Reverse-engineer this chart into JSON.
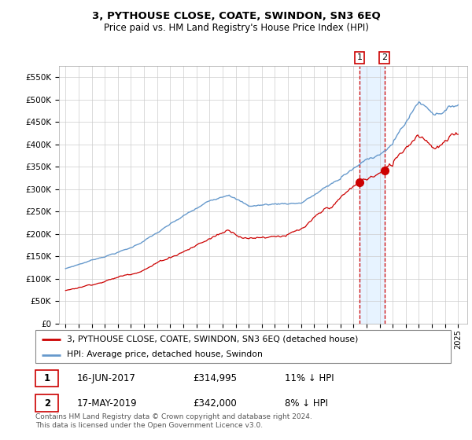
{
  "title": "3, PYTHOUSE CLOSE, COATE, SWINDON, SN3 6EQ",
  "subtitle": "Price paid vs. HM Land Registry's House Price Index (HPI)",
  "legend_line1": "3, PYTHOUSE CLOSE, COATE, SWINDON, SN3 6EQ (detached house)",
  "legend_line2": "HPI: Average price, detached house, Swindon",
  "annotation1": {
    "label": "1",
    "date": "16-JUN-2017",
    "price": "£314,995",
    "pct": "11% ↓ HPI",
    "x_year": 2017.46
  },
  "annotation2": {
    "label": "2",
    "date": "17-MAY-2019",
    "price": "£342,000",
    "pct": "8% ↓ HPI",
    "x_year": 2019.37
  },
  "footer": "Contains HM Land Registry data © Crown copyright and database right 2024.\nThis data is licensed under the Open Government Licence v3.0.",
  "red_line_color": "#cc0000",
  "blue_line_color": "#6699cc",
  "vline_color": "#cc0000",
  "shade_color": "#ddeeff",
  "ylim": [
    0,
    575000
  ],
  "yticks": [
    0,
    50000,
    100000,
    150000,
    200000,
    250000,
    300000,
    350000,
    400000,
    450000,
    500000,
    550000
  ],
  "ytick_labels": [
    "£0",
    "£50K",
    "£100K",
    "£150K",
    "£200K",
    "£250K",
    "£300K",
    "£350K",
    "£400K",
    "£450K",
    "£500K",
    "£550K"
  ],
  "xlim_start": 1994.5,
  "xlim_end": 2025.7
}
